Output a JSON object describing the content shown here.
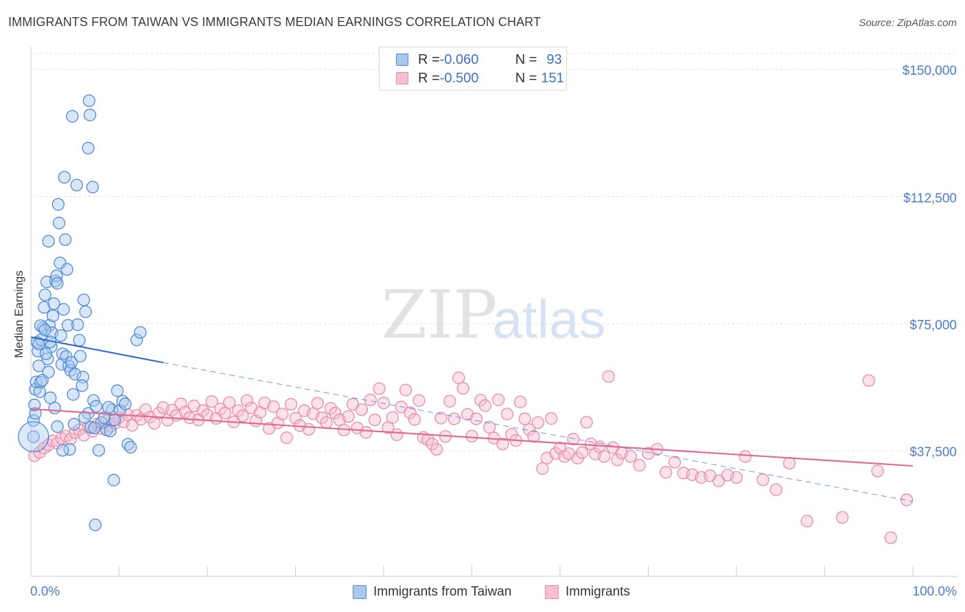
{
  "title": "IMMIGRANTS FROM TAIWAN VS IMMIGRANTS MEDIAN EARNINGS CORRELATION CHART",
  "source": "Source: ZipAtlas.com",
  "watermark": {
    "zip": "ZIP",
    "atlas": "atlas"
  },
  "colors": {
    "blue_fill": "#a9c8ee",
    "blue_stroke": "#4e8ad6",
    "blue_line": "#2a6fd1",
    "pink_fill": "#f5bfd0",
    "pink_stroke": "#e98aa8",
    "pink_line": "#e26a92",
    "grid": "#dcdcdc",
    "tick_label": "#4a7cc9"
  },
  "stats": [
    {
      "r_label": "R = ",
      "r_value": "-0.060",
      "n_label": "N = ",
      "n_value": "93"
    },
    {
      "r_label": "R = ",
      "r_value": "-0.500",
      "n_label": "N = ",
      "n_value": "151"
    }
  ],
  "chart_data": {
    "type": "scatter",
    "title": "IMMIGRANTS FROM TAIWAN VS IMMIGRANTS MEDIAN EARNINGS CORRELATION CHART",
    "xlabel": "",
    "ylabel": "Median Earnings",
    "xlim": [
      0,
      100
    ],
    "ylim": [
      0,
      160000
    ],
    "y_ticks": [
      37500,
      75000,
      112500,
      150000
    ],
    "y_tick_labels": [
      "$37,500",
      "$75,000",
      "$112,500",
      "$150,000"
    ],
    "x_tick_labels": [
      "0.0%",
      "100.0%"
    ],
    "grid": true,
    "legend_position": "bottom-center",
    "series": [
      {
        "name": "Immigrants from Taiwan",
        "color": "blue",
        "R": -0.06,
        "N": 93,
        "trend": {
          "x0": 0,
          "y0": 71000,
          "x1": 15,
          "y1": 63500,
          "dashed_to_x": 100,
          "dashed_to_y": 22500
        },
        "points": [
          [
            0.3,
            41600
          ],
          [
            0.3,
            46400
          ],
          [
            0.5,
            48500
          ],
          [
            0.4,
            51000
          ],
          [
            0.5,
            55600
          ],
          [
            0.6,
            57800
          ],
          [
            0.8,
            66900
          ],
          [
            0.7,
            69500
          ],
          [
            0.9,
            62500
          ],
          [
            1.0,
            54900
          ],
          [
            1.1,
            57700
          ],
          [
            1.2,
            70300
          ],
          [
            1.4,
            73800
          ],
          [
            1.5,
            79800
          ],
          [
            1.6,
            83500
          ],
          [
            1.8,
            87300
          ],
          [
            2.0,
            99300
          ],
          [
            1.9,
            64600
          ],
          [
            2.1,
            74500
          ],
          [
            2.3,
            68200
          ],
          [
            2.4,
            72300
          ],
          [
            2.5,
            77300
          ],
          [
            2.6,
            80900
          ],
          [
            2.8,
            87600
          ],
          [
            2.2,
            69600
          ],
          [
            2.9,
            89100
          ],
          [
            3.0,
            86900
          ],
          [
            3.2,
            104700
          ],
          [
            3.3,
            92900
          ],
          [
            3.4,
            71500
          ],
          [
            3.5,
            63000
          ],
          [
            3.6,
            66100
          ],
          [
            3.7,
            79200
          ],
          [
            3.1,
            110200
          ],
          [
            3.9,
            99800
          ],
          [
            4.0,
            65300
          ],
          [
            4.1,
            91000
          ],
          [
            4.2,
            74500
          ],
          [
            4.3,
            62500
          ],
          [
            4.5,
            61200
          ],
          [
            4.6,
            63600
          ],
          [
            4.8,
            54100
          ],
          [
            5.0,
            60100
          ],
          [
            5.3,
            74700
          ],
          [
            5.6,
            65400
          ],
          [
            5.9,
            59200
          ],
          [
            6.2,
            78500
          ],
          [
            6.5,
            48500
          ],
          [
            6.8,
            44400
          ],
          [
            7.1,
            52300
          ],
          [
            7.4,
            50600
          ],
          [
            7.7,
            37600
          ],
          [
            8.0,
            45800
          ],
          [
            8.3,
            47200
          ],
          [
            8.6,
            43600
          ],
          [
            6.0,
            82000
          ],
          [
            3.8,
            118200
          ],
          [
            4.7,
            136200
          ],
          [
            5.2,
            115900
          ],
          [
            6.5,
            126800
          ],
          [
            6.6,
            140800
          ],
          [
            6.7,
            136600
          ],
          [
            7.0,
            115300
          ],
          [
            9.0,
            43300
          ],
          [
            9.2,
            49600
          ],
          [
            9.5,
            46600
          ],
          [
            9.8,
            55200
          ],
          [
            10.1,
            49400
          ],
          [
            10.4,
            52100
          ],
          [
            10.7,
            51300
          ],
          [
            11.0,
            39400
          ],
          [
            11.3,
            38500
          ],
          [
            12.0,
            70200
          ],
          [
            12.4,
            72400
          ],
          [
            8.8,
            50300
          ],
          [
            7.2,
            44200
          ],
          [
            5.5,
            70100
          ],
          [
            4.4,
            37900
          ],
          [
            3.6,
            37600
          ],
          [
            2.7,
            50100
          ],
          [
            1.3,
            58300
          ],
          [
            1.7,
            66100
          ],
          [
            2.0,
            60700
          ],
          [
            2.2,
            53100
          ],
          [
            0.9,
            69000
          ],
          [
            1.1,
            74400
          ],
          [
            1.6,
            73100
          ],
          [
            7.3,
            15600
          ],
          [
            9.4,
            28800
          ],
          [
            4.9,
            45300
          ],
          [
            6.1,
            47300
          ],
          [
            3.0,
            44600
          ],
          [
            5.8,
            56700
          ]
        ]
      },
      {
        "name": "Immigrants",
        "color": "pink",
        "R": -0.5,
        "N": 151,
        "trend": {
          "x0": 0,
          "y0": 49800,
          "x1": 100,
          "y1": 33000
        },
        "points": [
          [
            0.4,
            36000
          ],
          [
            1.0,
            37000
          ],
          [
            1.5,
            38300
          ],
          [
            2.0,
            39200
          ],
          [
            2.5,
            40400
          ],
          [
            3.0,
            39700
          ],
          [
            3.5,
            41100
          ],
          [
            4.0,
            41800
          ],
          [
            4.5,
            40900
          ],
          [
            5.0,
            42800
          ],
          [
            5.5,
            43700
          ],
          [
            6.0,
            42100
          ],
          [
            6.5,
            44500
          ],
          [
            7.0,
            43200
          ],
          [
            7.5,
            45300
          ],
          [
            8.0,
            44100
          ],
          [
            8.5,
            46200
          ],
          [
            9.0,
            44700
          ],
          [
            9.5,
            45600
          ],
          [
            10.0,
            47300
          ],
          [
            10.5,
            46000
          ],
          [
            11.0,
            48100
          ],
          [
            11.5,
            45000
          ],
          [
            12.0,
            47900
          ],
          [
            12.5,
            46800
          ],
          [
            13.0,
            49600
          ],
          [
            13.5,
            47400
          ],
          [
            14.0,
            45600
          ],
          [
            14.5,
            48600
          ],
          [
            15.0,
            50200
          ],
          [
            15.5,
            46500
          ],
          [
            16.0,
            49500
          ],
          [
            16.5,
            47900
          ],
          [
            17.0,
            51300
          ],
          [
            17.5,
            48900
          ],
          [
            18.0,
            47200
          ],
          [
            18.5,
            50700
          ],
          [
            19.0,
            46600
          ],
          [
            19.5,
            49300
          ],
          [
            20.0,
            48100
          ],
          [
            20.5,
            52000
          ],
          [
            21.0,
            47000
          ],
          [
            21.5,
            49800
          ],
          [
            22.0,
            48600
          ],
          [
            22.5,
            51700
          ],
          [
            23.0,
            46000
          ],
          [
            23.5,
            49300
          ],
          [
            24.0,
            47800
          ],
          [
            24.5,
            52300
          ],
          [
            25.0,
            50100
          ],
          [
            25.5,
            46300
          ],
          [
            26.0,
            48800
          ],
          [
            26.5,
            51600
          ],
          [
            27.0,
            44100
          ],
          [
            27.5,
            50500
          ],
          [
            28.0,
            45700
          ],
          [
            28.5,
            48300
          ],
          [
            29.0,
            41300
          ],
          [
            29.5,
            51200
          ],
          [
            30.0,
            47100
          ],
          [
            30.5,
            44900
          ],
          [
            31.0,
            49300
          ],
          [
            31.5,
            43800
          ],
          [
            32.0,
            48400
          ],
          [
            32.5,
            51500
          ],
          [
            33.0,
            47200
          ],
          [
            33.5,
            45800
          ],
          [
            34.0,
            50000
          ],
          [
            34.5,
            48600
          ],
          [
            35.0,
            46600
          ],
          [
            35.5,
            43600
          ],
          [
            36.0,
            47600
          ],
          [
            36.5,
            51200
          ],
          [
            37.0,
            44200
          ],
          [
            37.5,
            49600
          ],
          [
            38.0,
            42900
          ],
          [
            38.5,
            52500
          ],
          [
            39.0,
            46600
          ],
          [
            39.5,
            55800
          ],
          [
            40.0,
            51600
          ],
          [
            40.5,
            44300
          ],
          [
            41.0,
            47300
          ],
          [
            41.5,
            42200
          ],
          [
            42.0,
            50400
          ],
          [
            42.5,
            55400
          ],
          [
            43.0,
            48700
          ],
          [
            43.5,
            46700
          ],
          [
            44.0,
            52300
          ],
          [
            44.5,
            41400
          ],
          [
            45.0,
            40700
          ],
          [
            45.5,
            39500
          ],
          [
            46.0,
            37900
          ],
          [
            46.5,
            47100
          ],
          [
            47.0,
            41700
          ],
          [
            47.5,
            52100
          ],
          [
            48.0,
            46900
          ],
          [
            48.5,
            59000
          ],
          [
            49.0,
            55900
          ],
          [
            49.5,
            48200
          ],
          [
            50.0,
            41800
          ],
          [
            50.5,
            46900
          ],
          [
            51.0,
            52400
          ],
          [
            51.5,
            50800
          ],
          [
            52.0,
            44400
          ],
          [
            52.5,
            41200
          ],
          [
            53.0,
            52500
          ],
          [
            53.5,
            39500
          ],
          [
            54.0,
            48300
          ],
          [
            54.5,
            42300
          ],
          [
            55.0,
            40500
          ],
          [
            55.5,
            51900
          ],
          [
            56.0,
            46900
          ],
          [
            56.5,
            43700
          ],
          [
            57.0,
            41700
          ],
          [
            57.5,
            45800
          ],
          [
            58.0,
            32200
          ],
          [
            58.5,
            35300
          ],
          [
            59.0,
            47000
          ],
          [
            59.5,
            36700
          ],
          [
            60.0,
            38300
          ],
          [
            60.5,
            35800
          ],
          [
            61.0,
            36600
          ],
          [
            61.5,
            40900
          ],
          [
            62.0,
            35300
          ],
          [
            62.5,
            36900
          ],
          [
            63.0,
            45900
          ],
          [
            63.5,
            39500
          ],
          [
            64.0,
            36500
          ],
          [
            64.5,
            38600
          ],
          [
            65.0,
            35800
          ],
          [
            65.5,
            59400
          ],
          [
            66.0,
            38400
          ],
          [
            66.5,
            34800
          ],
          [
            67.0,
            36800
          ],
          [
            68.0,
            35800
          ],
          [
            69.0,
            33200
          ],
          [
            70.0,
            36700
          ],
          [
            71.0,
            37900
          ],
          [
            72.0,
            31100
          ],
          [
            73.0,
            34100
          ],
          [
            74.0,
            30900
          ],
          [
            75.0,
            30400
          ],
          [
            76.0,
            29600
          ],
          [
            77.0,
            30100
          ],
          [
            78.0,
            28600
          ],
          [
            80.0,
            29600
          ],
          [
            83.0,
            28900
          ],
          [
            84.5,
            26000
          ],
          [
            88.0,
            16700
          ],
          [
            92.0,
            17800
          ],
          [
            95.0,
            58200
          ],
          [
            99.3,
            23000
          ],
          [
            96.0,
            31500
          ],
          [
            97.5,
            11800
          ],
          [
            79.0,
            30300
          ],
          [
            81.0,
            35800
          ],
          [
            86.0,
            33800
          ]
        ]
      }
    ]
  },
  "legend": {
    "items": [
      "Immigrants from Taiwan",
      "Immigrants"
    ]
  }
}
